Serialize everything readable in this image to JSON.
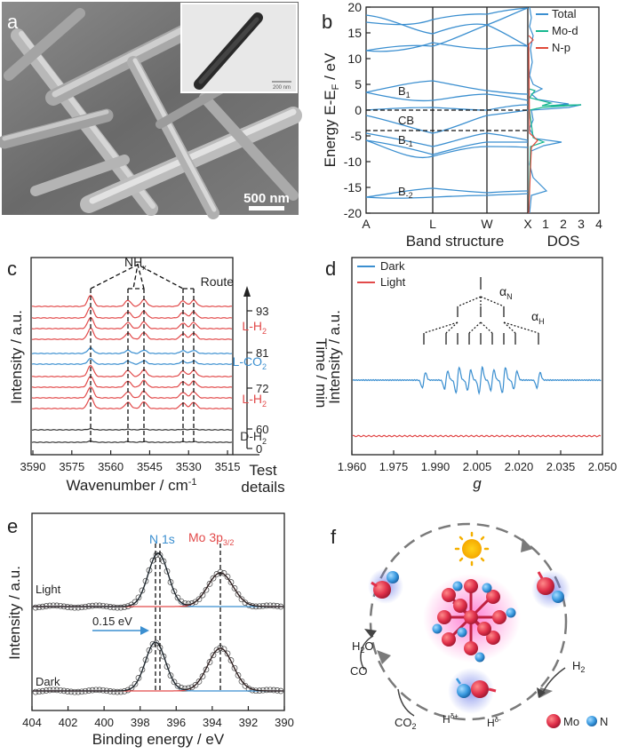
{
  "panels": {
    "a": {
      "label": "a",
      "scale_bar": "500 nm",
      "inset_scale_bar": "200 nm"
    },
    "b": {
      "label": "b",
      "ylabel_main": "Energy E-E",
      "ylabel_sub": "F",
      "ylabel_unit": " / eV",
      "yticks": [
        "20",
        "15",
        "10",
        "5",
        "0",
        "-5",
        "-10",
        "-15",
        "-20"
      ],
      "xticks_band": [
        "A",
        "L",
        "W",
        "X"
      ],
      "xticks_dos": [
        "1",
        "2",
        "3",
        "4"
      ],
      "xlabel_band": "Band structure",
      "xlabel_dos": "DOS",
      "legend": [
        {
          "name": "Total",
          "color": "#3b8fd0"
        },
        {
          "name": "Mo-d",
          "color": "#18b890"
        },
        {
          "name": "N-p",
          "color": "#e04a3a"
        }
      ],
      "band_labels": [
        "B",
        "CB",
        "B",
        "B"
      ],
      "band_subs": [
        "1",
        "",
        "-1",
        "-2"
      ]
    },
    "c": {
      "label": "c",
      "nhx_main": "NH",
      "nhx_sub": "x",
      "route": "Route",
      "time_axis": "Time / min",
      "ylabel": "Intensity / a.u.",
      "xlabel_main": "Wavenumber / cm",
      "xlabel_sup": "-1",
      "xticks": [
        "3590",
        "3575",
        "3560",
        "3545",
        "3530",
        "3515"
      ],
      "time_ticks": [
        "93",
        "81",
        "72",
        "60",
        "0"
      ],
      "conditions": [
        {
          "main": "L-H",
          "sub": "2",
          "color": "#e24a4a"
        },
        {
          "main": "L-CO",
          "sub": "2",
          "color": "#3b8fd0"
        },
        {
          "main": "L-H",
          "sub": "2",
          "color": "#e24a4a"
        },
        {
          "main": "D-H",
          "sub": "2",
          "color": "#333333"
        }
      ],
      "test_details": [
        "Test",
        "details"
      ]
    },
    "d": {
      "label": "d",
      "legend": [
        {
          "name": "Dark",
          "color": "#3b8fd0"
        },
        {
          "name": "Light",
          "color": "#e24a4a"
        }
      ],
      "alpha_n": "α",
      "alpha_n_sub": "N",
      "alpha_h": "α",
      "alpha_h_sub": "H",
      "ylabel": "Intensity / a.u.",
      "xlabel": "g",
      "xticks": [
        "1.960",
        "1.975",
        "1.990",
        "2.005",
        "2.020",
        "2.035",
        "2.050"
      ]
    },
    "e": {
      "label": "e",
      "peak_n": "N 1s",
      "peak_mo_main": "Mo 3p",
      "peak_mo_sub": "3/2",
      "shift": "0.15 eV",
      "light": "Light",
      "dark": "Dark",
      "ylabel": "Intensity / a.u.",
      "xlabel": "Binding energy / eV",
      "xticks": [
        "404",
        "402",
        "400",
        "398",
        "396",
        "394",
        "392",
        "390"
      ]
    },
    "f": {
      "label": "f",
      "h2o": "H",
      "h2o_sub": "2",
      "h2o_end": "O",
      "co": "CO",
      "h2": "H",
      "h2_sub": "2",
      "co2": "CO",
      "co2_sub": "2",
      "hplus": "H",
      "hplus_sup": "δ+",
      "hminus": "H",
      "hminus_sup": "δ-",
      "mo": "Mo",
      "n": "N"
    }
  }
}
